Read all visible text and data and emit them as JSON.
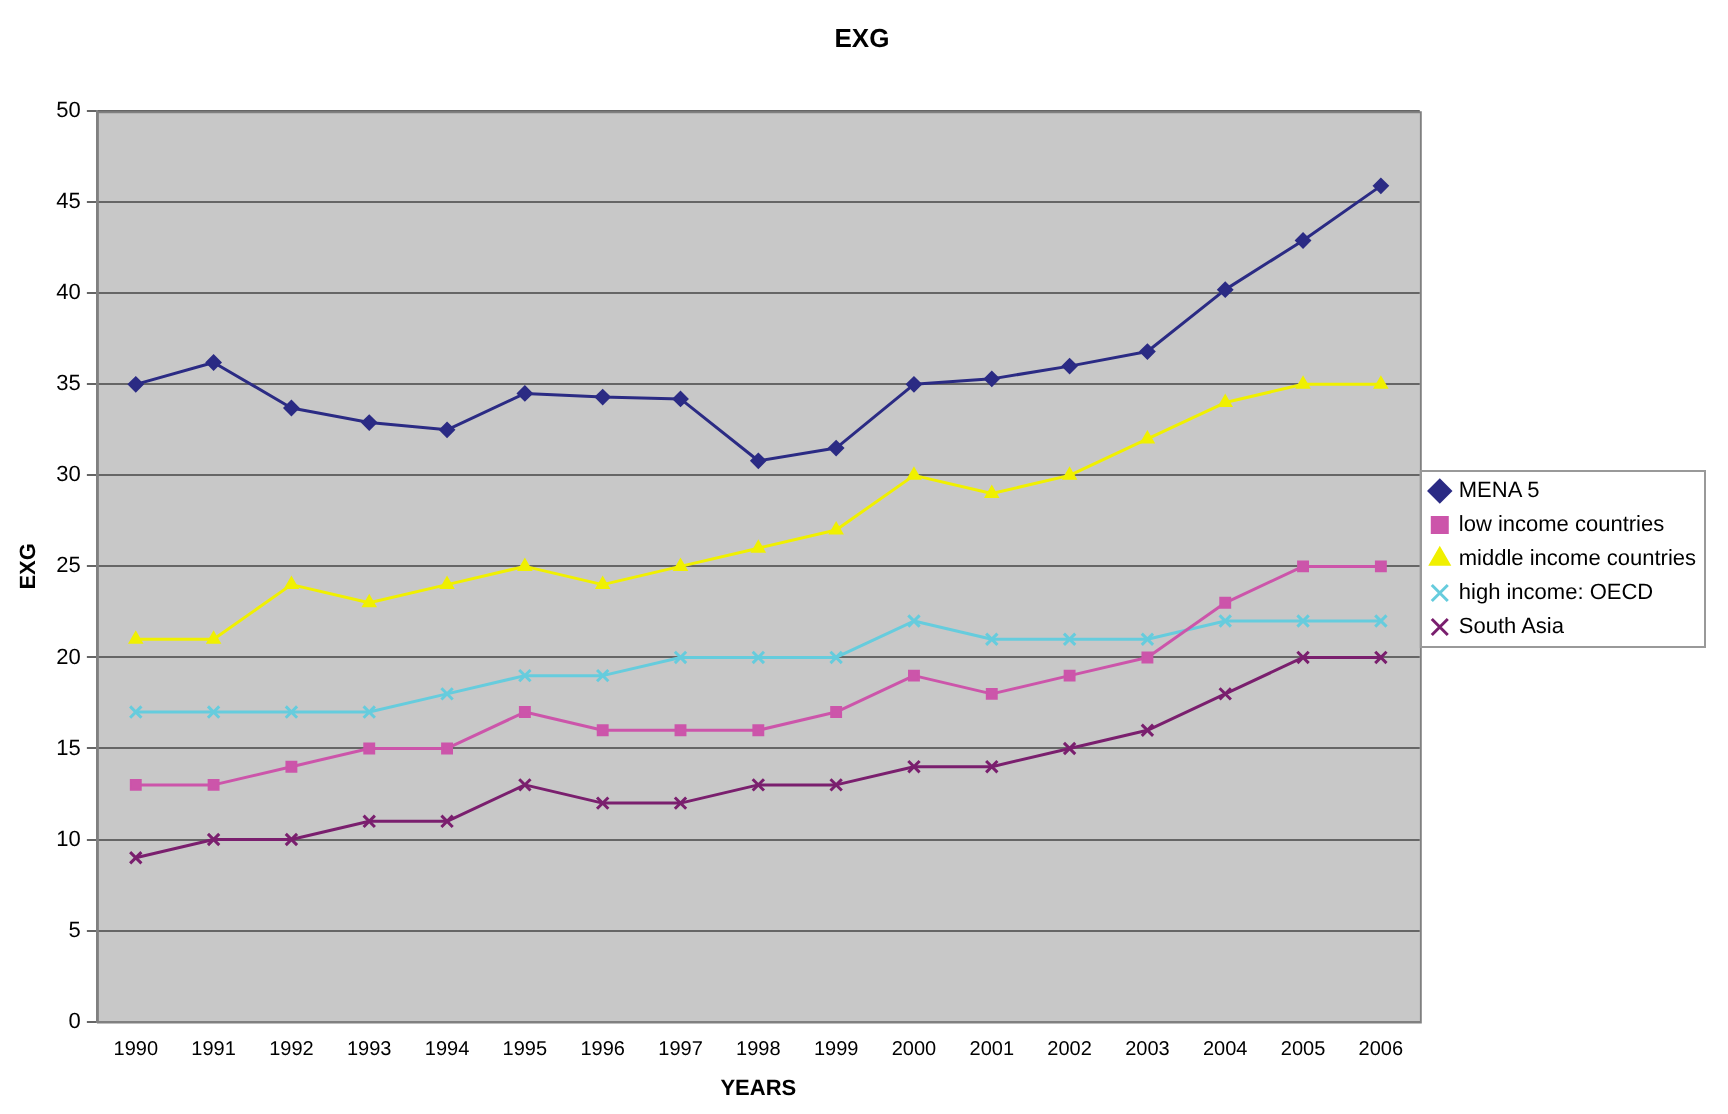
{
  "chart_data": {
    "type": "line",
    "title": "EXG",
    "xlabel": "YEARS",
    "ylabel": "EXG",
    "categories": [
      "1990",
      "1991",
      "1992",
      "1993",
      "1994",
      "1995",
      "1996",
      "1997",
      "1998",
      "1999",
      "2000",
      "2001",
      "2002",
      "2003",
      "2004",
      "2005",
      "2006"
    ],
    "series": [
      {
        "name": "MENA 5",
        "color": "#2b2b84",
        "marker": "diamond",
        "values": [
          35,
          36.2,
          33.7,
          32.9,
          32.5,
          34.5,
          34.3,
          34.2,
          30.8,
          31.5,
          35,
          35.3,
          36,
          36.8,
          40.2,
          42.9,
          45.9
        ]
      },
      {
        "name": "low income countries",
        "color": "#cc55aa",
        "marker": "square",
        "values": [
          13,
          13,
          14,
          15,
          15,
          17,
          16,
          16,
          16,
          17,
          19,
          18,
          19,
          20,
          23,
          25,
          25
        ]
      },
      {
        "name": "middle income countries",
        "color": "#f0f000",
        "marker": "triangle",
        "values": [
          21,
          21,
          24,
          23,
          24,
          25,
          24,
          25,
          26,
          27,
          30,
          29,
          30,
          32,
          34,
          35,
          35
        ]
      },
      {
        "name": "high income: OECD",
        "color": "#66ccdd",
        "marker": "cross",
        "values": [
          17,
          17,
          17,
          17,
          18,
          19,
          19,
          20,
          20,
          20,
          22,
          21,
          21,
          21,
          22,
          22,
          22
        ]
      },
      {
        "name": "South Asia",
        "color": "#7a1f6e",
        "marker": "cross",
        "values": [
          9,
          10,
          10,
          11,
          11,
          13,
          12,
          12,
          13,
          13,
          14,
          14,
          15,
          16,
          18,
          20,
          20
        ]
      }
    ],
    "ylim": [
      0,
      50
    ],
    "yticks": [
      0,
      5,
      10,
      15,
      20,
      25,
      30,
      35,
      40,
      45,
      50
    ],
    "grid": "y",
    "legend": "right",
    "line_style": "solid"
  }
}
